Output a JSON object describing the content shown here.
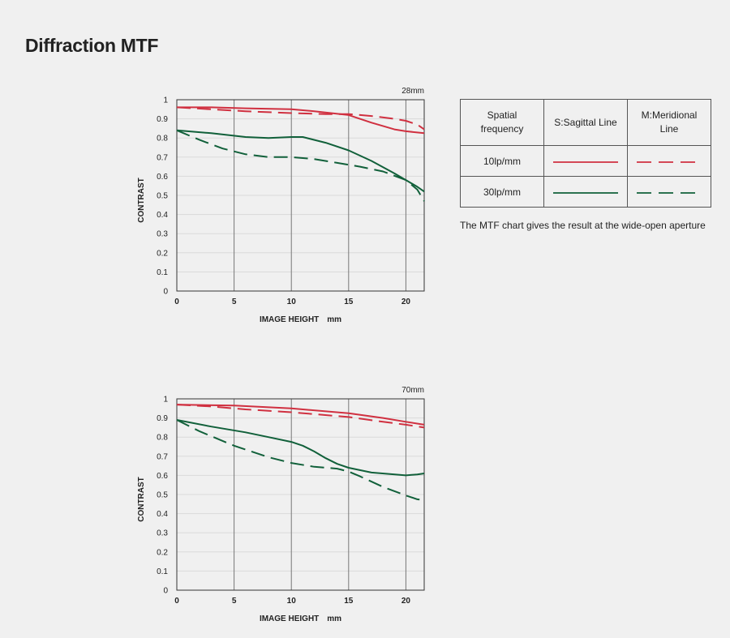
{
  "title": "Diffraction MTF",
  "chart_data": [
    {
      "type": "line",
      "title": "28mm",
      "xlabel": "IMAGE HEIGHT　mm",
      "ylabel": "CONTRAST",
      "xlim": [
        0,
        21.6
      ],
      "ylim": [
        0,
        1
      ],
      "x_ticks": [
        "0",
        "5",
        "10",
        "15",
        "20"
      ],
      "y_ticks": [
        "0",
        "0.1",
        "0.2",
        "0.3",
        "0.4",
        "0.5",
        "0.6",
        "0.7",
        "0.8",
        "0.9",
        "1"
      ],
      "series": [
        {
          "name": "10lp/mm S",
          "color": "#d03040",
          "dash": "solid",
          "points": [
            [
              0,
              0.96
            ],
            [
              3,
              0.96
            ],
            [
              6,
              0.955
            ],
            [
              10,
              0.95
            ],
            [
              12,
              0.94
            ],
            [
              15,
              0.92
            ],
            [
              17,
              0.88
            ],
            [
              19,
              0.845
            ],
            [
              20,
              0.835
            ],
            [
              21.6,
              0.825
            ]
          ]
        },
        {
          "name": "10lp/mm M",
          "color": "#d03040",
          "dash": "dashed",
          "points": [
            [
              0,
              0.96
            ],
            [
              3,
              0.95
            ],
            [
              6,
              0.94
            ],
            [
              10,
              0.93
            ],
            [
              13,
              0.925
            ],
            [
              15,
              0.925
            ],
            [
              17,
              0.915
            ],
            [
              19,
              0.9
            ],
            [
              20,
              0.89
            ],
            [
              21,
              0.87
            ],
            [
              21.6,
              0.845
            ]
          ]
        },
        {
          "name": "30lp/mm S",
          "color": "#11603a",
          "dash": "solid",
          "points": [
            [
              0,
              0.84
            ],
            [
              3,
              0.825
            ],
            [
              6,
              0.805
            ],
            [
              8,
              0.8
            ],
            [
              10,
              0.805
            ],
            [
              11,
              0.805
            ],
            [
              13,
              0.775
            ],
            [
              15,
              0.735
            ],
            [
              17,
              0.68
            ],
            [
              19,
              0.615
            ],
            [
              20,
              0.58
            ],
            [
              21,
              0.545
            ],
            [
              21.6,
              0.52
            ]
          ]
        },
        {
          "name": "30lp/mm M",
          "color": "#11603a",
          "dash": "dashed",
          "points": [
            [
              0,
              0.84
            ],
            [
              2,
              0.79
            ],
            [
              4,
              0.745
            ],
            [
              6,
              0.715
            ],
            [
              8,
              0.7
            ],
            [
              10,
              0.7
            ],
            [
              12,
              0.69
            ],
            [
              14,
              0.67
            ],
            [
              16,
              0.65
            ],
            [
              18,
              0.625
            ],
            [
              20,
              0.58
            ],
            [
              21,
              0.53
            ],
            [
              21.6,
              0.47
            ]
          ]
        }
      ]
    },
    {
      "type": "line",
      "title": "70mm",
      "xlabel": "IMAGE HEIGHT　mm",
      "ylabel": "CONTRAST",
      "xlim": [
        0,
        21.6
      ],
      "ylim": [
        0,
        1
      ],
      "x_ticks": [
        "0",
        "5",
        "10",
        "15",
        "20"
      ],
      "y_ticks": [
        "0",
        "0.1",
        "0.2",
        "0.3",
        "0.4",
        "0.5",
        "0.6",
        "0.7",
        "0.8",
        "0.9",
        "1"
      ],
      "series": [
        {
          "name": "10lp/mm S",
          "color": "#d03040",
          "dash": "solid",
          "points": [
            [
              0,
              0.97
            ],
            [
              5,
              0.965
            ],
            [
              10,
              0.95
            ],
            [
              15,
              0.925
            ],
            [
              18,
              0.9
            ],
            [
              20,
              0.88
            ],
            [
              21.6,
              0.865
            ]
          ]
        },
        {
          "name": "10lp/mm M",
          "color": "#d03040",
          "dash": "dashed",
          "points": [
            [
              0,
              0.97
            ],
            [
              3,
              0.96
            ],
            [
              6,
              0.945
            ],
            [
              10,
              0.93
            ],
            [
              15,
              0.905
            ],
            [
              18,
              0.88
            ],
            [
              20,
              0.865
            ],
            [
              21.6,
              0.85
            ]
          ]
        },
        {
          "name": "30lp/mm S",
          "color": "#11603a",
          "dash": "solid",
          "points": [
            [
              0,
              0.89
            ],
            [
              3,
              0.855
            ],
            [
              6,
              0.825
            ],
            [
              8,
              0.8
            ],
            [
              10,
              0.775
            ],
            [
              11,
              0.755
            ],
            [
              12,
              0.725
            ],
            [
              13,
              0.69
            ],
            [
              14,
              0.66
            ],
            [
              15,
              0.64
            ],
            [
              17,
              0.615
            ],
            [
              20,
              0.6
            ],
            [
              21,
              0.605
            ],
            [
              21.6,
              0.61
            ]
          ]
        },
        {
          "name": "30lp/mm M",
          "color": "#11603a",
          "dash": "dashed",
          "points": [
            [
              0,
              0.89
            ],
            [
              2,
              0.83
            ],
            [
              5,
              0.755
            ],
            [
              8,
              0.695
            ],
            [
              10,
              0.665
            ],
            [
              12,
              0.645
            ],
            [
              14,
              0.635
            ],
            [
              15,
              0.62
            ],
            [
              16,
              0.595
            ],
            [
              18,
              0.54
            ],
            [
              20,
              0.495
            ],
            [
              21,
              0.475
            ],
            [
              21.6,
              0.47
            ]
          ]
        }
      ]
    }
  ],
  "legend": {
    "header": {
      "frequency": "Spatial\nfrequency",
      "sagittal": "S:Sagittal Line",
      "meridional": "M:Meridional\nLine"
    },
    "rows": [
      {
        "label": "10lp/mm",
        "color": "#d03040"
      },
      {
        "label": "30lp/mm",
        "color": "#11603a"
      }
    ],
    "note": "The MTF chart gives the result at the wide-open aperture"
  }
}
